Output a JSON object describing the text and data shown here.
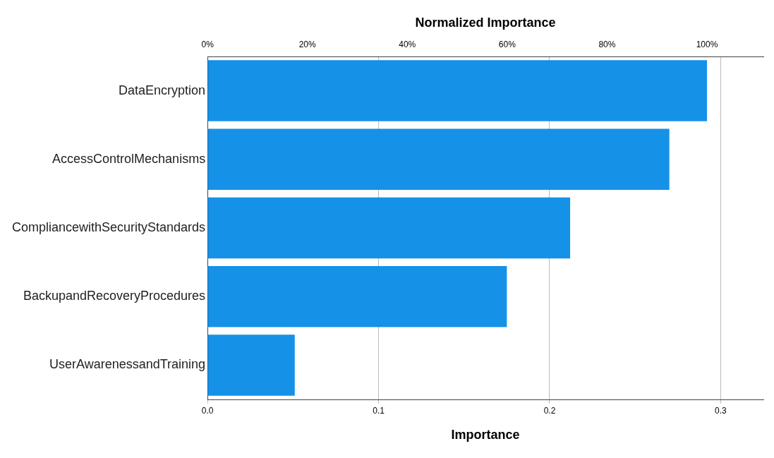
{
  "chart_data": {
    "type": "bar",
    "orientation": "horizontal",
    "categories": [
      "DataEncryption",
      "AccessControlMechanisms",
      "CompliancewithSecurityStandards",
      "BackupandRecoveryProcedures",
      "UserAwarenessandTraining"
    ],
    "values": [
      0.292,
      0.27,
      0.212,
      0.175,
      0.051
    ],
    "color": "#1591e8",
    "xlabel": "Importance",
    "xlim": [
      0,
      0.325
    ],
    "xticks": [
      {
        "value": 0,
        "label": "0.0"
      },
      0.1,
      0.2,
      0.3
    ],
    "x2label": "Normalized Importance",
    "x2lim": [
      0,
      111.3
    ],
    "x2ticks": [
      {
        "value": 0,
        "label": "0%"
      },
      {
        "value": 20,
        "label": "20%"
      },
      {
        "value": 40,
        "label": "40%"
      },
      {
        "value": 60,
        "label": "60%"
      },
      {
        "value": 80,
        "label": "80%"
      },
      {
        "value": 100,
        "label": "100%"
      }
    ],
    "grid": "x"
  }
}
